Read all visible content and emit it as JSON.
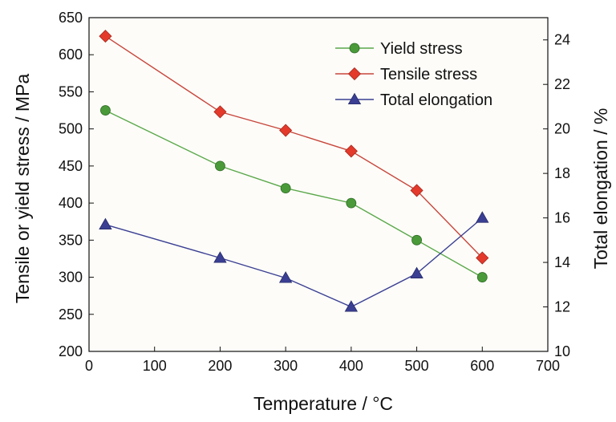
{
  "chart_data": {
    "type": "line",
    "xlabel": "Temperature / °C",
    "ylabel_left": "Tensile or yield stress / MPa",
    "ylabel_right": "Total elongation / %",
    "xlim": [
      0,
      700
    ],
    "ylim_left": [
      200,
      650
    ],
    "ylim_right": [
      10,
      25
    ],
    "x_ticks": [
      "0",
      "100",
      "200",
      "300",
      "400",
      "500",
      "600",
      "700"
    ],
    "y_left_ticks": [
      "200",
      "250",
      "300",
      "350",
      "400",
      "450",
      "500",
      "550",
      "600",
      "650"
    ],
    "y_right_ticks": [
      "10",
      "12",
      "14",
      "16",
      "18",
      "20",
      "22",
      "24"
    ],
    "grid": false,
    "legend_position": "top-right",
    "plot_background": "#fdfcf8",
    "series": [
      {
        "name": "Yield stress",
        "axis": "left",
        "marker": "circle",
        "color": "#4a9a3a",
        "line_color": "#5aa84a",
        "x": [
          25,
          200,
          300,
          400,
          500,
          600
        ],
        "y": [
          525,
          450,
          420,
          400,
          350,
          300
        ]
      },
      {
        "name": "Tensile stress",
        "axis": "left",
        "marker": "diamond",
        "color": "#e33a2c",
        "line_color": "#c8463c",
        "x": [
          25,
          200,
          300,
          400,
          500,
          600
        ],
        "y": [
          625,
          523,
          498,
          470,
          417,
          326
        ]
      },
      {
        "name": "Total elongation",
        "axis": "right",
        "marker": "triangle",
        "color": "#3a3f93",
        "line_color": "#3a3f93",
        "x": [
          25,
          200,
          300,
          400,
          500,
          600
        ],
        "y": [
          15.7,
          14.2,
          13.3,
          12.0,
          13.5,
          16.0
        ]
      }
    ]
  }
}
